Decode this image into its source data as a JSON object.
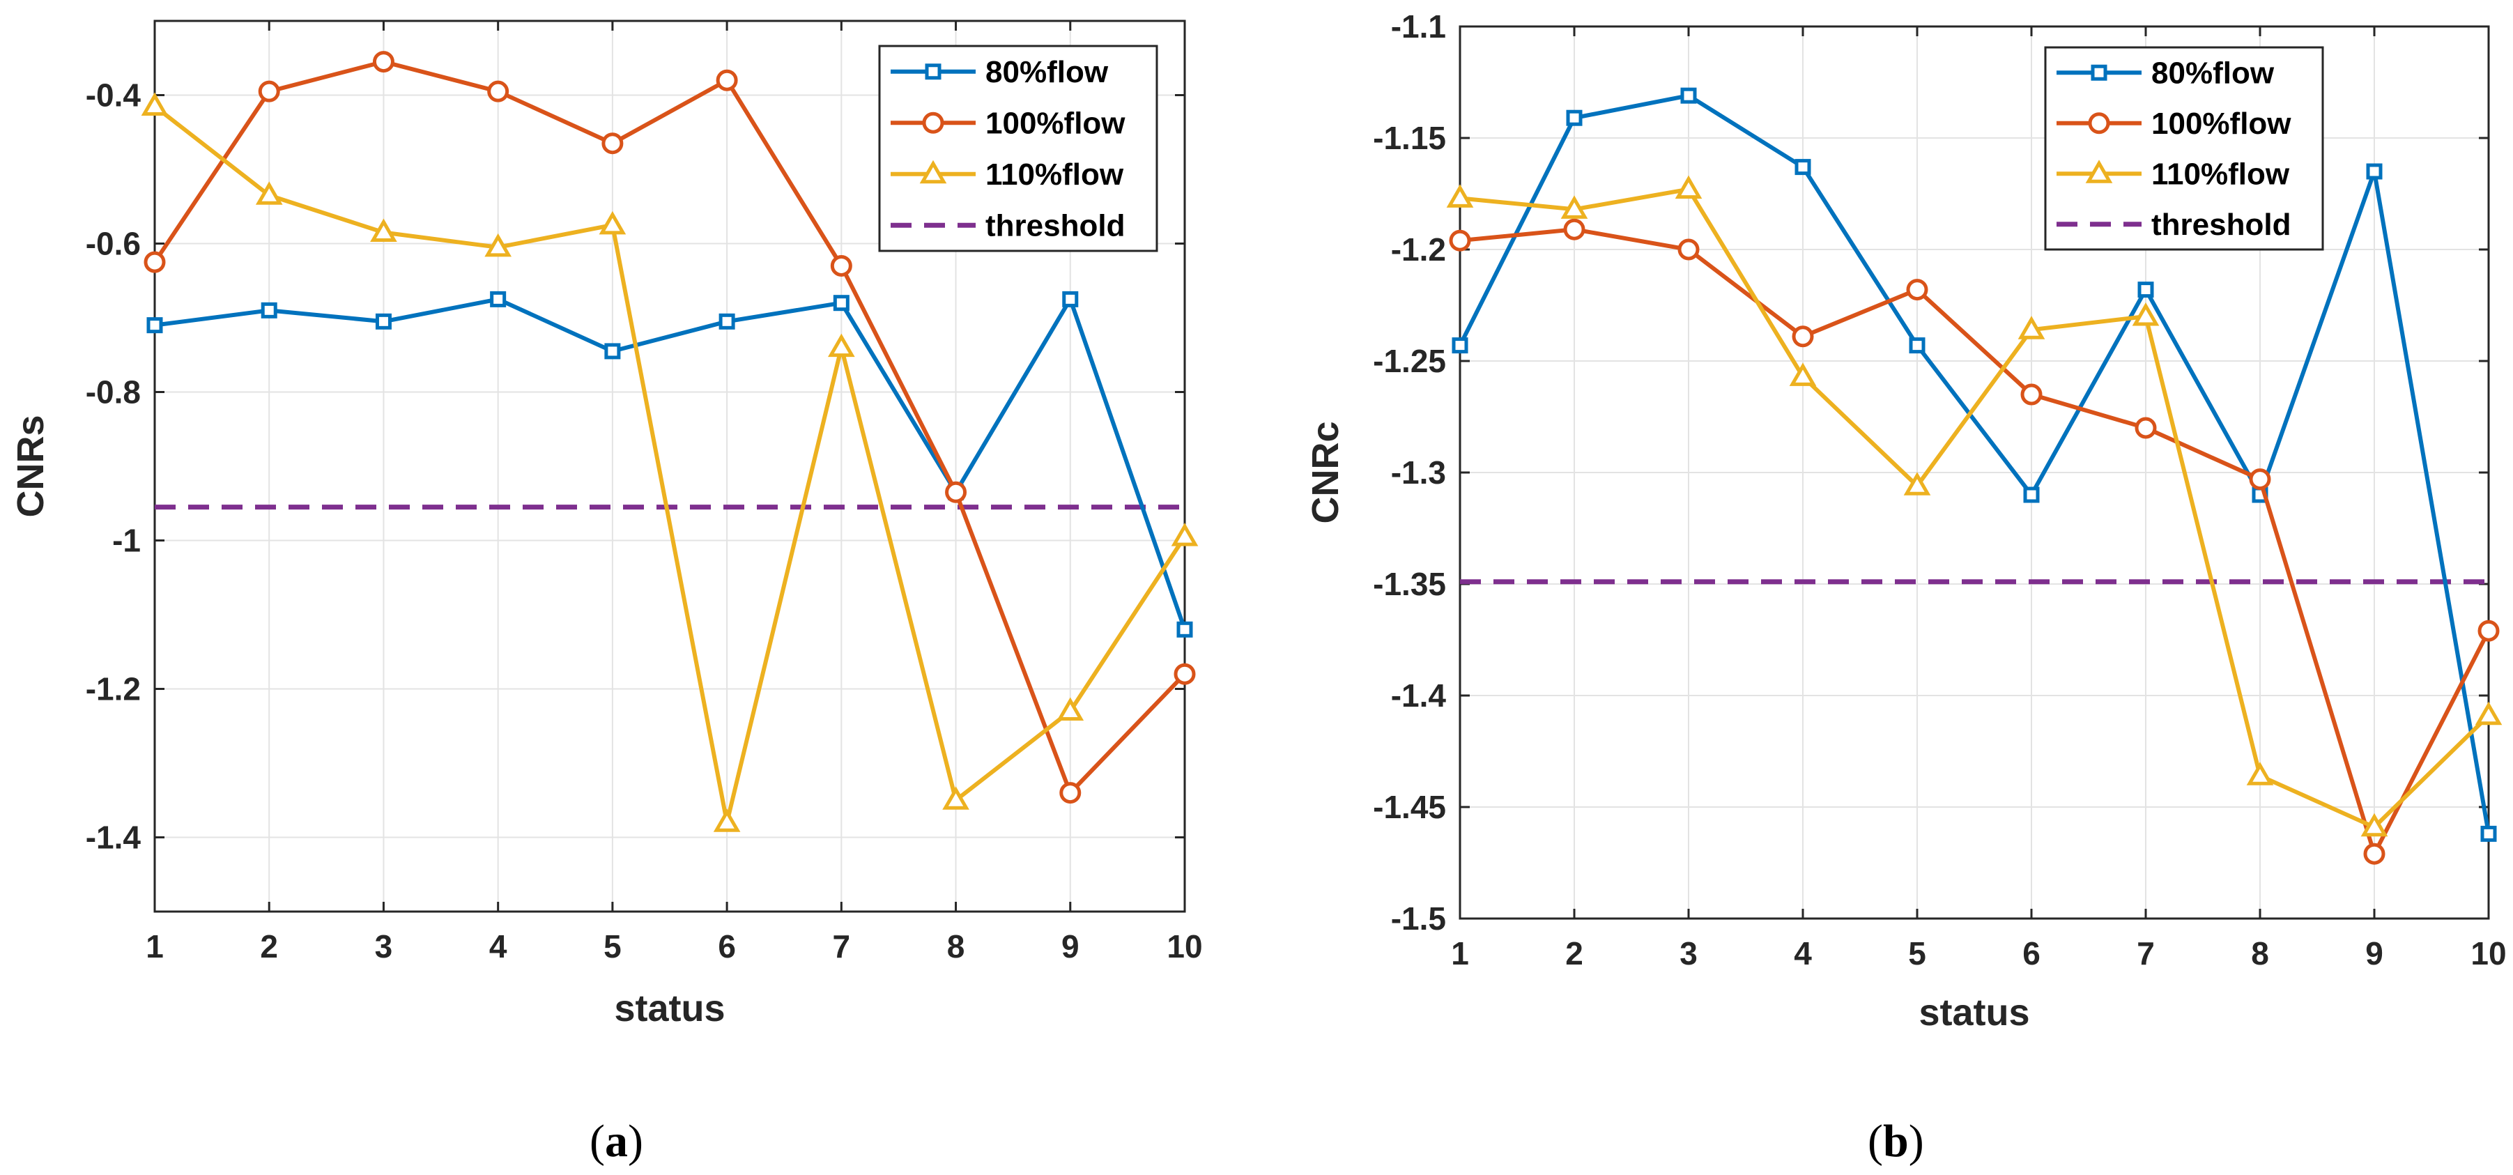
{
  "chart_data": [
    {
      "type": "line",
      "panel_label": {
        "open": "(",
        "letter": "a",
        "close": ")"
      },
      "xlabel": "status",
      "ylabel": "CNRs",
      "x": [
        1,
        2,
        3,
        4,
        5,
        6,
        7,
        8,
        9,
        10
      ],
      "xlim": [
        1,
        10
      ],
      "ylim": [
        -1.5,
        -0.3
      ],
      "xticks": [
        1,
        2,
        3,
        4,
        5,
        6,
        7,
        8,
        9,
        10
      ],
      "yticks": [
        -1.4,
        -1.2,
        -1,
        -0.8,
        -0.6,
        -0.4
      ],
      "ytick_labels": [
        "-1.4",
        "-1.2",
        "-1",
        "-0.8",
        "-0.6",
        "-0.4"
      ],
      "grid": true,
      "legend_position": "top-right",
      "series": [
        {
          "name": "80%flow",
          "color": "#0072BD",
          "marker": "square",
          "values": [
            -0.71,
            -0.69,
            -0.705,
            -0.675,
            -0.745,
            -0.705,
            -0.68,
            -0.935,
            -0.675,
            -1.12
          ]
        },
        {
          "name": "100%flow",
          "color": "#D95319",
          "marker": "circle",
          "values": [
            -0.625,
            -0.395,
            -0.355,
            -0.395,
            -0.465,
            -0.38,
            -0.63,
            -0.935,
            -1.34,
            -1.18
          ]
        },
        {
          "name": "110%flow",
          "color": "#EDB120",
          "marker": "triangle",
          "values": [
            -0.415,
            -0.535,
            -0.585,
            -0.605,
            -0.575,
            -1.38,
            -0.74,
            -1.35,
            -1.23,
            -0.995
          ]
        }
      ],
      "threshold": {
        "name": "threshold",
        "value": -0.955,
        "color": "#7E2F8E"
      }
    },
    {
      "type": "line",
      "panel_label": {
        "open": "(",
        "letter": "b",
        "close": ")"
      },
      "xlabel": "status",
      "ylabel": "CNRc",
      "x": [
        1,
        2,
        3,
        4,
        5,
        6,
        7,
        8,
        9,
        10
      ],
      "xlim": [
        1,
        10
      ],
      "ylim": [
        -1.5,
        -1.1
      ],
      "xticks": [
        1,
        2,
        3,
        4,
        5,
        6,
        7,
        8,
        9,
        10
      ],
      "yticks": [
        -1.5,
        -1.45,
        -1.4,
        -1.35,
        -1.3,
        -1.25,
        -1.2,
        -1.15,
        -1.1
      ],
      "ytick_labels": [
        "-1.5",
        "-1.45",
        "-1.4",
        "-1.35",
        "-1.3",
        "-1.25",
        "-1.2",
        "-1.15",
        "-1.1"
      ],
      "grid": true,
      "legend_position": "top-right",
      "series": [
        {
          "name": "80%flow",
          "color": "#0072BD",
          "marker": "square",
          "values": [
            -1.243,
            -1.141,
            -1.131,
            -1.163,
            -1.243,
            -1.31,
            -1.218,
            -1.31,
            -1.165,
            -1.462
          ]
        },
        {
          "name": "100%flow",
          "color": "#D95319",
          "marker": "circle",
          "values": [
            -1.196,
            -1.191,
            -1.2,
            -1.239,
            -1.218,
            -1.265,
            -1.28,
            -1.303,
            -1.471,
            -1.371
          ]
        },
        {
          "name": "110%flow",
          "color": "#EDB120",
          "marker": "triangle",
          "values": [
            -1.177,
            -1.182,
            -1.173,
            -1.257,
            -1.306,
            -1.236,
            -1.23,
            -1.436,
            -1.459,
            -1.409
          ]
        }
      ],
      "threshold": {
        "name": "threshold",
        "value": -1.349,
        "color": "#7E2F8E"
      }
    }
  ]
}
